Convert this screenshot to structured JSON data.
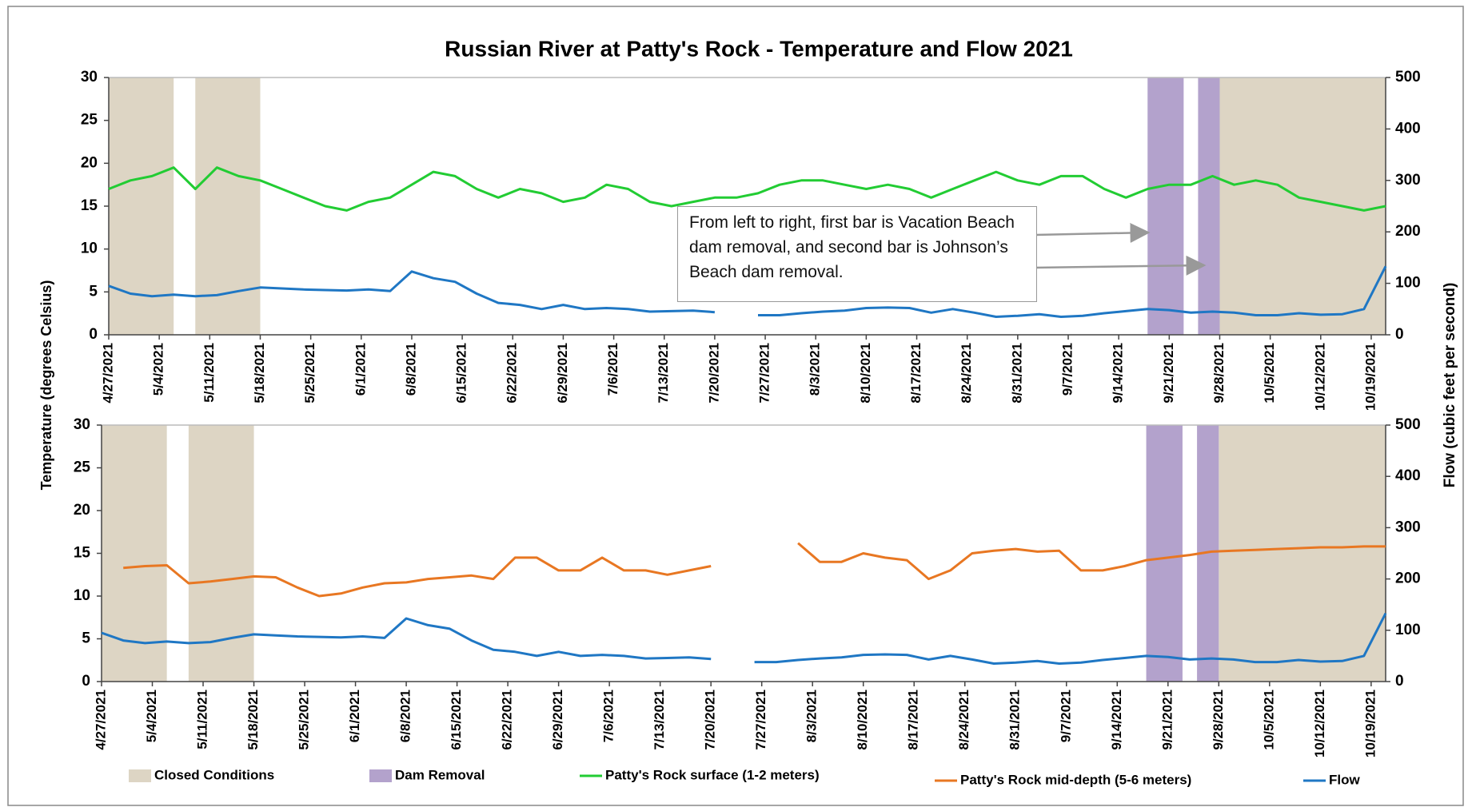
{
  "chart_data": [
    {
      "type": "line",
      "title": "Russian River at Patty's Rock - Temperature and Flow 2021",
      "ylabel": "Temperature (degrees Celsius)",
      "y2label": "Flow (cubic feet per second)",
      "annotation": "From left to right, first bar is Vacation Beach dam removal, and second bar is Johnson’s Beach dam removal.",
      "xlim": [
        "4/27/2021",
        "10/21/2021"
      ],
      "xticks": [
        "4/27/2021",
        "5/4/2021",
        "5/11/2021",
        "5/18/2021",
        "5/25/2021",
        "6/1/2021",
        "6/8/2021",
        "6/15/2021",
        "6/22/2021",
        "6/29/2021",
        "7/6/2021",
        "7/13/2021",
        "7/20/2021",
        "7/27/2021",
        "8/3/2021",
        "8/10/2021",
        "8/17/2021",
        "8/24/2021",
        "8/31/2021",
        "9/7/2021",
        "9/14/2021",
        "9/21/2021",
        "9/28/2021",
        "10/5/2021",
        "10/12/2021",
        "10/19/2021"
      ],
      "ylim": [
        0,
        30
      ],
      "yticks": [
        0,
        5,
        10,
        15,
        20,
        25,
        30
      ],
      "y2lim": [
        0,
        500
      ],
      "y2ticks": [
        0,
        100,
        200,
        300,
        400,
        500
      ],
      "shaded": [
        {
          "name": "Closed Conditions",
          "color": "#ddd5c4",
          "ranges": [
            [
              "4/27/2021",
              "5/6/2021"
            ],
            [
              "5/9/2021",
              "5/18/2021"
            ],
            [
              "9/28/2021",
              "10/21/2021"
            ]
          ]
        },
        {
          "name": "Dam Removal",
          "color": "#b3a2cc",
          "ranges": [
            [
              "9/18/2021",
              "9/23/2021"
            ],
            [
              "9/25/2021",
              "9/28/2021"
            ]
          ]
        }
      ],
      "x": [
        "4/27/2021",
        "4/30/2021",
        "5/3/2021",
        "5/6/2021",
        "5/9/2021",
        "5/12/2021",
        "5/15/2021",
        "5/18/2021",
        "5/21/2021",
        "5/24/2021",
        "5/27/2021",
        "5/30/2021",
        "6/2/2021",
        "6/5/2021",
        "6/8/2021",
        "6/11/2021",
        "6/14/2021",
        "6/17/2021",
        "6/20/2021",
        "6/23/2021",
        "6/26/2021",
        "6/29/2021",
        "7/2/2021",
        "7/5/2021",
        "7/8/2021",
        "7/11/2021",
        "7/14/2021",
        "7/17/2021",
        "7/20/2021",
        "7/23/2021",
        "7/26/2021",
        "7/29/2021",
        "8/1/2021",
        "8/4/2021",
        "8/7/2021",
        "8/10/2021",
        "8/13/2021",
        "8/16/2021",
        "8/19/2021",
        "8/22/2021",
        "8/25/2021",
        "8/28/2021",
        "8/31/2021",
        "9/3/2021",
        "9/6/2021",
        "9/9/2021",
        "9/12/2021",
        "9/15/2021",
        "9/18/2021",
        "9/21/2021",
        "9/24/2021",
        "9/27/2021",
        "9/30/2021",
        "10/3/2021",
        "10/6/2021",
        "10/9/2021",
        "10/12/2021",
        "10/15/2021",
        "10/18/2021",
        "10/21/2021"
      ],
      "series": [
        {
          "name": "Patty's Rock surface (1-2 meters)",
          "color": "#22cc33",
          "values": [
            17,
            18,
            18.5,
            19.5,
            17,
            19.5,
            18.5,
            18,
            17,
            16,
            15,
            14.5,
            15.5,
            16,
            17.5,
            19,
            18.5,
            17,
            16,
            17,
            16.5,
            15.5,
            16,
            17.5,
            17,
            15.5,
            15,
            15.5,
            16,
            16,
            16.5,
            17.5,
            18,
            18,
            17.5,
            17,
            17.5,
            17,
            16,
            17,
            18,
            19,
            18,
            17.5,
            18.5,
            18.5,
            17,
            16,
            17,
            17.5,
            17.5,
            18.5,
            17.5,
            18,
            17.5,
            16,
            15.5,
            15,
            14.5,
            15
          ]
        },
        {
          "name": "Flow",
          "color": "#1f77c4",
          "axis": "y2",
          "values": [
            95,
            80,
            75,
            78,
            75,
            77,
            85,
            92,
            90,
            88,
            87,
            86,
            88,
            85,
            123,
            110,
            103,
            80,
            62,
            58,
            50,
            58,
            50,
            52,
            50,
            45,
            46,
            47,
            44,
            null,
            38,
            38,
            42,
            45,
            47,
            52,
            53,
            52,
            43,
            50,
            43,
            35,
            37,
            40,
            35,
            37,
            42,
            46,
            50,
            48,
            43,
            45,
            43,
            38,
            38,
            42,
            39,
            40,
            50,
            133
          ]
        }
      ]
    },
    {
      "type": "line",
      "xlim": [
        "4/27/2021",
        "10/21/2021"
      ],
      "xticks": [
        "4/27/2021",
        "5/4/2021",
        "5/11/2021",
        "5/18/2021",
        "5/25/2021",
        "6/1/2021",
        "6/8/2021",
        "6/15/2021",
        "6/22/2021",
        "6/29/2021",
        "7/6/2021",
        "7/13/2021",
        "7/20/2021",
        "7/27/2021",
        "8/3/2021",
        "8/10/2021",
        "8/17/2021",
        "8/24/2021",
        "8/31/2021",
        "9/7/2021",
        "9/14/2021",
        "9/21/2021",
        "9/28/2021",
        "10/5/2021",
        "10/12/2021",
        "10/19/2021"
      ],
      "ylim": [
        0,
        30
      ],
      "yticks": [
        0,
        5,
        10,
        15,
        20,
        25,
        30
      ],
      "y2lim": [
        0,
        500
      ],
      "y2ticks": [
        0,
        100,
        200,
        300,
        400,
        500
      ],
      "shaded": [
        {
          "name": "Closed Conditions",
          "color": "#ddd5c4",
          "ranges": [
            [
              "4/27/2021",
              "5/6/2021"
            ],
            [
              "5/9/2021",
              "5/18/2021"
            ],
            [
              "9/28/2021",
              "10/21/2021"
            ]
          ]
        },
        {
          "name": "Dam Removal",
          "color": "#b3a2cc",
          "ranges": [
            [
              "9/18/2021",
              "9/23/2021"
            ],
            [
              "9/25/2021",
              "9/28/2021"
            ]
          ]
        }
      ],
      "x": [
        "4/27/2021",
        "4/30/2021",
        "5/3/2021",
        "5/6/2021",
        "5/9/2021",
        "5/12/2021",
        "5/15/2021",
        "5/18/2021",
        "5/21/2021",
        "5/24/2021",
        "5/27/2021",
        "5/30/2021",
        "6/2/2021",
        "6/5/2021",
        "6/8/2021",
        "6/11/2021",
        "6/14/2021",
        "6/17/2021",
        "6/20/2021",
        "6/23/2021",
        "6/26/2021",
        "6/29/2021",
        "7/2/2021",
        "7/5/2021",
        "7/8/2021",
        "7/11/2021",
        "7/14/2021",
        "7/17/2021",
        "7/20/2021",
        "7/23/2021",
        "7/26/2021",
        "7/29/2021",
        "8/1/2021",
        "8/4/2021",
        "8/7/2021",
        "8/10/2021",
        "8/13/2021",
        "8/16/2021",
        "8/19/2021",
        "8/22/2021",
        "8/25/2021",
        "8/28/2021",
        "8/31/2021",
        "9/3/2021",
        "9/6/2021",
        "9/9/2021",
        "9/12/2021",
        "9/15/2021",
        "9/18/2021",
        "9/21/2021",
        "9/24/2021",
        "9/27/2021",
        "9/30/2021",
        "10/3/2021",
        "10/6/2021",
        "10/9/2021",
        "10/12/2021",
        "10/15/2021",
        "10/18/2021",
        "10/21/2021"
      ],
      "series": [
        {
          "name": "Patty's Rock mid-depth (5-6 meters)",
          "color": "#e87722",
          "values": [
            null,
            13.3,
            13.5,
            13.6,
            11.5,
            11.7,
            12,
            12.3,
            12.2,
            11,
            10,
            10.3,
            11,
            11.5,
            11.6,
            12,
            12.2,
            12.4,
            12,
            14.5,
            14.5,
            13,
            13,
            14.5,
            13,
            13,
            12.5,
            13,
            13.5,
            null,
            null,
            null,
            16.2,
            14,
            14,
            15,
            14.5,
            14.2,
            12,
            13,
            15,
            15.3,
            15.5,
            15.2,
            15.3,
            13,
            13,
            13.5,
            14.2,
            14.5,
            14.8,
            15.2,
            15.3,
            15.4,
            15.5,
            15.6,
            15.7,
            15.7,
            15.8,
            15.8
          ]
        },
        {
          "name": "Flow",
          "color": "#1f77c4",
          "axis": "y2",
          "values": [
            95,
            80,
            75,
            78,
            75,
            77,
            85,
            92,
            90,
            88,
            87,
            86,
            88,
            85,
            123,
            110,
            103,
            80,
            62,
            58,
            50,
            58,
            50,
            52,
            50,
            45,
            46,
            47,
            44,
            null,
            38,
            38,
            42,
            45,
            47,
            52,
            53,
            52,
            43,
            50,
            43,
            35,
            37,
            40,
            35,
            37,
            42,
            46,
            50,
            48,
            43,
            45,
            43,
            38,
            38,
            42,
            39,
            40,
            50,
            133
          ]
        }
      ]
    }
  ]
}
